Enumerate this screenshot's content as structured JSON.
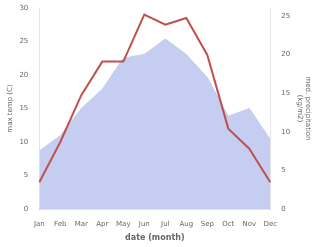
{
  "chart_data": {
    "type": "line",
    "xlabel": "date (month)",
    "ylabel": "max temp (C)",
    "y2label": "med. precipitation\n(kg/m2)",
    "categories": [
      "Jan",
      "Feb",
      "Mar",
      "Apr",
      "May",
      "Jun",
      "Jul",
      "Aug",
      "Sep",
      "Oct",
      "Nov",
      "Dec"
    ],
    "series": [
      {
        "type": "line",
        "color": "#c0504d",
        "values": [
          4,
          10,
          17,
          22,
          22,
          29,
          27.5,
          28.5,
          23,
          12,
          9,
          4
        ]
      },
      {
        "type": "area",
        "color": "#c5cef0",
        "axis": "y2",
        "values": [
          7.5,
          9.5,
          13,
          15.5,
          19.5,
          20,
          22,
          20,
          17,
          12,
          13,
          9
        ]
      }
    ],
    "ylim": [
      0,
      30
    ],
    "yticks": [
      0,
      5,
      10,
      15,
      20,
      25,
      30
    ],
    "y2lim": [
      0,
      26
    ],
    "y2ticks": [
      0,
      5,
      10,
      15,
      20,
      25
    ],
    "grid": false
  }
}
